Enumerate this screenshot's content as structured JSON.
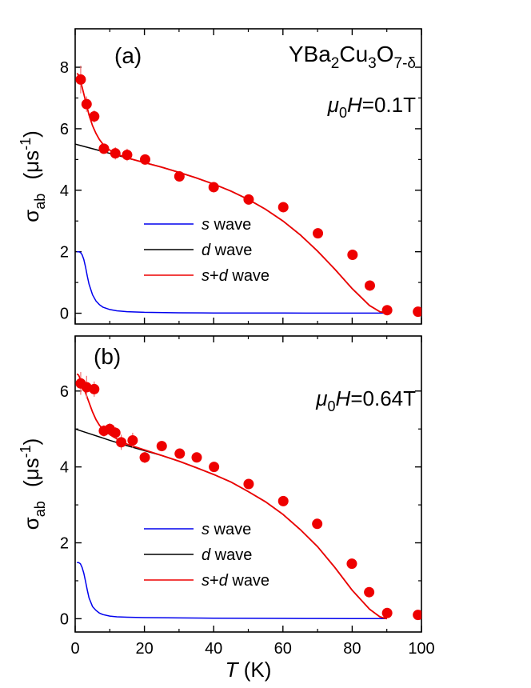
{
  "chart_data": [
    {
      "type": "scatter",
      "panel_label": "(a)",
      "compound": {
        "base": "YBa",
        "s1": "2",
        "p1": "Cu",
        "s2": "3",
        "p2": "O",
        "s3": "7-δ"
      },
      "field": {
        "mu": "μ",
        "sub": "0",
        "H": "H",
        "value": "=0.1T"
      },
      "ylabel": {
        "sigma": "σ",
        "sub": "ab",
        "unit": "(μs",
        "exp": "-1",
        "close": ")"
      },
      "xlim": [
        0,
        100
      ],
      "ylim": [
        -0.35,
        9.25
      ],
      "yticks": [
        0,
        2,
        4,
        6,
        8
      ],
      "ytick_labels": [
        "0",
        "2",
        "4",
        "6",
        "8"
      ],
      "legend": [
        {
          "italic": "s",
          "text": " wave",
          "color": "#0000ee"
        },
        {
          "italic": "d",
          "text": " wave",
          "color": "#000000"
        },
        {
          "italic": "s",
          "plus": "+",
          "italic2": "d",
          "text": " wave",
          "color": "#ee0000"
        }
      ],
      "points": {
        "x": [
          1.6,
          3.3,
          5.5,
          8.3,
          11.6,
          15.0,
          20.2,
          30.1,
          40.0,
          50.1,
          60.1,
          70.1,
          80.1,
          85.1,
          90.1,
          99.0
        ],
        "y": [
          7.6,
          6.8,
          6.4,
          5.35,
          5.2,
          5.15,
          5.0,
          4.45,
          4.1,
          3.7,
          3.45,
          2.6,
          1.9,
          0.9,
          0.1,
          0.05
        ],
        "yerr": [
          0.45,
          0.25,
          0.2,
          0.15,
          0.2,
          0.2,
          0.15,
          0.15,
          0.15,
          0.12,
          0.12,
          0.12,
          0.12,
          0.12,
          0.1,
          0.1
        ]
      },
      "series": [
        {
          "name": "s wave",
          "color": "#0000ee",
          "x": [
            0.5,
            1,
            1.5,
            2,
            2.5,
            3,
            3.5,
            4,
            5,
            6,
            7,
            8,
            10,
            12,
            15,
            20,
            30,
            40,
            50,
            60,
            70,
            80,
            90
          ],
          "y": [
            2.0,
            2.0,
            1.98,
            1.9,
            1.75,
            1.5,
            1.2,
            0.95,
            0.6,
            0.4,
            0.28,
            0.2,
            0.12,
            0.08,
            0.05,
            0.03,
            0.015,
            0.01,
            0.008,
            0.006,
            0.005,
            0.004,
            0.003
          ]
        },
        {
          "name": "d wave",
          "color": "#000000",
          "x": [
            0,
            5,
            10,
            15,
            20,
            25,
            30,
            35,
            40,
            45,
            50,
            55,
            60,
            65,
            70,
            75,
            80,
            85,
            88,
            90
          ],
          "y": [
            5.5,
            5.35,
            5.2,
            5.05,
            4.9,
            4.75,
            4.58,
            4.4,
            4.2,
            3.97,
            3.7,
            3.38,
            3.0,
            2.55,
            2.02,
            1.43,
            0.8,
            0.25,
            0.05,
            0.0
          ]
        },
        {
          "name": "s+d wave",
          "color": "#ee0000",
          "x": [
            0.5,
            1,
            2,
            3,
            4,
            5,
            6,
            7,
            8,
            10,
            12,
            15,
            20,
            25,
            30,
            35,
            40,
            45,
            50,
            55,
            60,
            65,
            70,
            75,
            80,
            85,
            88,
            90
          ],
          "y": [
            7.8,
            7.75,
            7.35,
            6.9,
            6.45,
            6.1,
            5.85,
            5.65,
            5.5,
            5.3,
            5.17,
            5.05,
            4.9,
            4.75,
            4.58,
            4.4,
            4.2,
            3.97,
            3.7,
            3.38,
            3.0,
            2.55,
            2.02,
            1.43,
            0.8,
            0.25,
            0.05,
            0.0
          ]
        }
      ]
    },
    {
      "type": "scatter",
      "panel_label": "(b)",
      "field": {
        "mu": "μ",
        "sub": "0",
        "H": "H",
        "value": "=0.64T"
      },
      "ylabel": {
        "sigma": "σ",
        "sub": "ab",
        "unit": "(μs",
        "exp": "-1",
        "close": ")"
      },
      "xlim": [
        0,
        100
      ],
      "ylim": [
        -0.35,
        7.45
      ],
      "yticks": [
        0,
        2,
        4,
        6
      ],
      "ytick_labels": [
        "0",
        "2",
        "4",
        "6"
      ],
      "xticks": [
        0,
        20,
        40,
        60,
        80,
        100
      ],
      "xtick_labels": [
        "0",
        "20",
        "40",
        "60",
        "80",
        "100"
      ],
      "xlabel": {
        "T": "T",
        "unit": " (K)"
      },
      "legend": [
        {
          "italic": "s",
          "text": " wave",
          "color": "#0000ee"
        },
        {
          "italic": "d",
          "text": " wave",
          "color": "#000000"
        },
        {
          "italic": "s",
          "plus": "+",
          "italic2": "d",
          "text": " wave",
          "color": "#ee0000"
        }
      ],
      "points": {
        "x": [
          1.6,
          3.3,
          5.5,
          8.3,
          10.0,
          11.6,
          13.3,
          16.6,
          20.1,
          25.0,
          30.2,
          35.1,
          40.1,
          50.1,
          60.1,
          69.9,
          79.9,
          84.9,
          90.1,
          99.0
        ],
        "y": [
          6.2,
          6.1,
          6.05,
          4.95,
          5.0,
          4.9,
          4.65,
          4.7,
          4.25,
          4.55,
          4.35,
          4.25,
          4.0,
          3.55,
          3.1,
          2.5,
          1.45,
          0.7,
          0.15,
          0.1
        ],
        "yerr": [
          0.3,
          0.3,
          0.2,
          0.15,
          0.15,
          0.15,
          0.2,
          0.2,
          0.15,
          0.12,
          0.12,
          0.12,
          0.12,
          0.12,
          0.12,
          0.12,
          0.12,
          0.12,
          0.1,
          0.1
        ]
      },
      "series": [
        {
          "name": "s wave",
          "color": "#0000ee",
          "x": [
            0.5,
            1,
            1.5,
            2,
            2.5,
            3,
            3.5,
            4,
            5,
            6,
            7,
            8,
            10,
            12,
            15,
            20,
            30,
            40,
            50,
            60,
            70,
            80,
            90
          ],
          "y": [
            1.48,
            1.48,
            1.45,
            1.35,
            1.2,
            0.98,
            0.75,
            0.55,
            0.32,
            0.22,
            0.15,
            0.11,
            0.07,
            0.05,
            0.04,
            0.03,
            0.02,
            0.015,
            0.01,
            0.008,
            0.006,
            0.005,
            0.004
          ]
        },
        {
          "name": "d wave",
          "color": "#000000",
          "x": [
            0,
            5,
            10,
            15,
            20,
            25,
            30,
            35,
            40,
            45,
            50,
            55,
            60,
            65,
            70,
            75,
            80,
            85,
            88,
            90
          ],
          "y": [
            5.0,
            4.85,
            4.7,
            4.56,
            4.43,
            4.3,
            4.15,
            3.98,
            3.8,
            3.6,
            3.35,
            3.08,
            2.75,
            2.35,
            1.9,
            1.35,
            0.75,
            0.25,
            0.05,
            0.0
          ]
        },
        {
          "name": "s+d wave",
          "color": "#ee0000",
          "x": [
            0.5,
            1,
            2,
            3,
            4,
            5,
            6,
            7,
            8,
            10,
            12,
            15,
            20,
            25,
            30,
            35,
            40,
            45,
            50,
            55,
            60,
            65,
            70,
            75,
            80,
            85,
            88,
            90
          ],
          "y": [
            6.45,
            6.42,
            6.2,
            5.95,
            5.7,
            5.45,
            5.25,
            5.1,
            5.0,
            4.85,
            4.74,
            4.6,
            4.45,
            4.3,
            4.15,
            3.98,
            3.8,
            3.6,
            3.35,
            3.08,
            2.75,
            2.35,
            1.9,
            1.35,
            0.75,
            0.25,
            0.05,
            0.0
          ]
        }
      ]
    }
  ]
}
